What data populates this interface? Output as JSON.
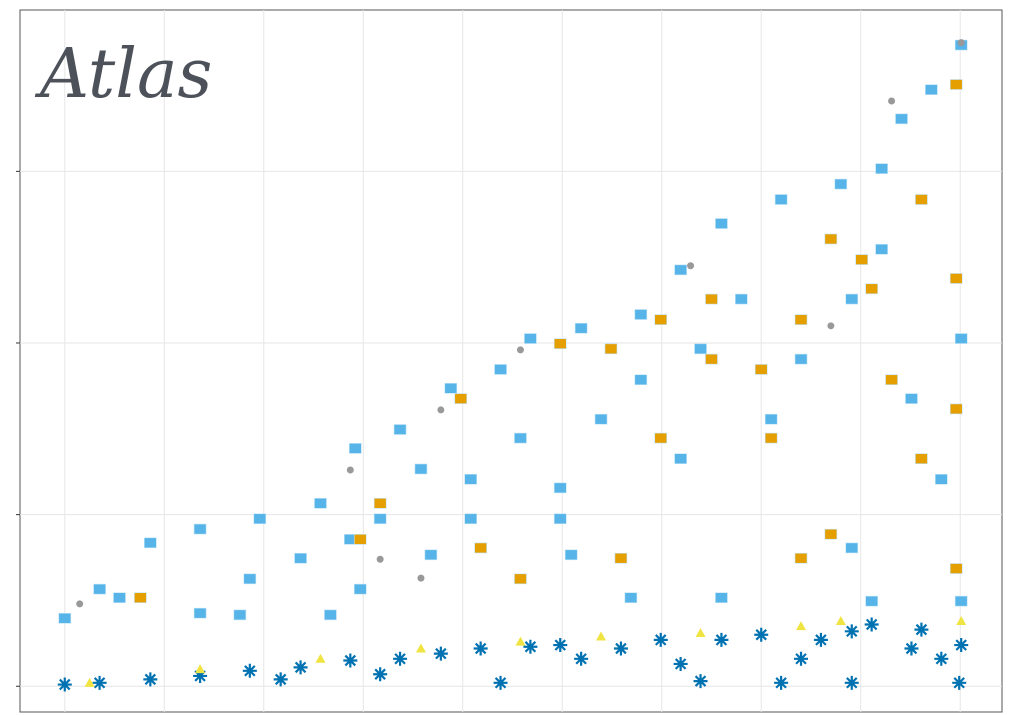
{
  "chart_data": {
    "type": "scatter",
    "title": "Atlas",
    "xlim": [
      -0.45,
      9.42
    ],
    "ylim": [
      -0.15,
      3.94
    ],
    "xticks": [
      0,
      1,
      2,
      3,
      4,
      5,
      6,
      7,
      8,
      9
    ],
    "yticks": [
      0,
      1,
      2,
      3
    ],
    "grid": true,
    "series": [
      {
        "color": "#56B4E9",
        "marker": "square",
        "x": [
          0,
          0.35,
          0.86,
          1.36,
          1.96,
          2.57,
          2.92,
          3.37,
          3.88,
          4.38,
          4.68,
          5.19,
          5.79,
          6.19,
          6.6,
          7.2,
          7.8,
          8.21,
          8.41,
          8.71,
          9.01,
          0.55,
          1.36,
          1.86,
          2.37,
          2.87,
          3.17,
          3.58,
          4.08,
          4.58,
          4.98,
          5.39,
          5.79,
          6.19,
          6.39,
          6.8,
          7.1,
          7.4,
          7.91,
          8.21,
          8.51,
          8.81,
          9.01,
          1.76,
          2.67,
          3.68,
          5.09,
          5.69,
          6.6,
          7.91,
          8.11,
          9.01,
          4.98,
          4.08,
          2.97
        ],
        "y": [
          0.39,
          0.56,
          0.83,
          0.91,
          0.97,
          1.06,
          1.38,
          1.49,
          1.73,
          1.84,
          2.02,
          2.08,
          2.16,
          2.42,
          2.69,
          2.83,
          2.92,
          3.01,
          3.3,
          3.47,
          3.73,
          0.51,
          0.42,
          0.62,
          0.74,
          0.85,
          0.97,
          1.26,
          1.2,
          1.44,
          1.15,
          1.55,
          1.78,
          1.32,
          1.96,
          2.25,
          1.55,
          1.9,
          2.25,
          2.54,
          1.67,
          1.2,
          2.02,
          0.41,
          0.41,
          0.76,
          0.76,
          0.51,
          0.51,
          0.8,
          0.49,
          0.49,
          0.97,
          0.97,
          0.56
        ]
      },
      {
        "color": "#E69F00",
        "marker": "square",
        "x": [
          0.76,
          2.97,
          3.17,
          3.98,
          4.98,
          5.49,
          5.99,
          5.99,
          6.5,
          6.5,
          7.0,
          7.4,
          7.7,
          8.11,
          8.31,
          8.61,
          8.96,
          8.96,
          8.96,
          7.4,
          7.7,
          8.96,
          4.58,
          4.18,
          5.59,
          8.61,
          8.01,
          7.1
        ],
        "y": [
          0.51,
          0.85,
          1.06,
          1.67,
          1.99,
          1.96,
          2.13,
          1.44,
          2.25,
          1.9,
          1.84,
          2.13,
          2.6,
          2.31,
          1.78,
          1.32,
          1.61,
          3.5,
          2.37,
          0.74,
          0.88,
          0.68,
          0.62,
          0.8,
          0.74,
          2.83,
          2.48,
          1.44
        ]
      },
      {
        "color": "#999999",
        "marker": "circle",
        "x": [
          0.15,
          2.87,
          3.78,
          4.58,
          6.29,
          8.31,
          9.01,
          3.58,
          3.17,
          7.7
        ],
        "y": [
          0.48,
          1.26,
          1.61,
          1.96,
          2.45,
          3.41,
          3.75,
          0.63,
          0.74,
          2.1
        ]
      },
      {
        "color": "#0072B2",
        "marker": "asterisk",
        "x": [
          0,
          0.35,
          0.86,
          1.36,
          1.86,
          2.17,
          2.37,
          2.87,
          3.17,
          3.37,
          3.78,
          4.18,
          4.38,
          4.68,
          4.98,
          5.19,
          5.59,
          5.99,
          6.19,
          6.39,
          6.6,
          7.0,
          7.2,
          7.4,
          7.6,
          7.91,
          7.91,
          8.11,
          8.51,
          8.61,
          8.81,
          8.99,
          9.01
        ],
        "y": [
          0.01,
          0.02,
          0.04,
          0.06,
          0.09,
          0.04,
          0.11,
          0.15,
          0.07,
          0.16,
          0.19,
          0.22,
          0.02,
          0.23,
          0.24,
          0.16,
          0.22,
          0.27,
          0.13,
          0.03,
          0.27,
          0.3,
          0.02,
          0.16,
          0.27,
          0.02,
          0.32,
          0.36,
          0.22,
          0.33,
          0.16,
          0.02,
          0.24
        ]
      },
      {
        "color": "#F0E442",
        "marker": "triangle",
        "x": [
          0.25,
          1.36,
          2.57,
          3.58,
          4.58,
          5.39,
          6.39,
          7.4,
          7.8,
          9.01
        ],
        "y": [
          0.02,
          0.1,
          0.16,
          0.22,
          0.26,
          0.29,
          0.31,
          0.35,
          0.38,
          0.38
        ]
      }
    ]
  }
}
